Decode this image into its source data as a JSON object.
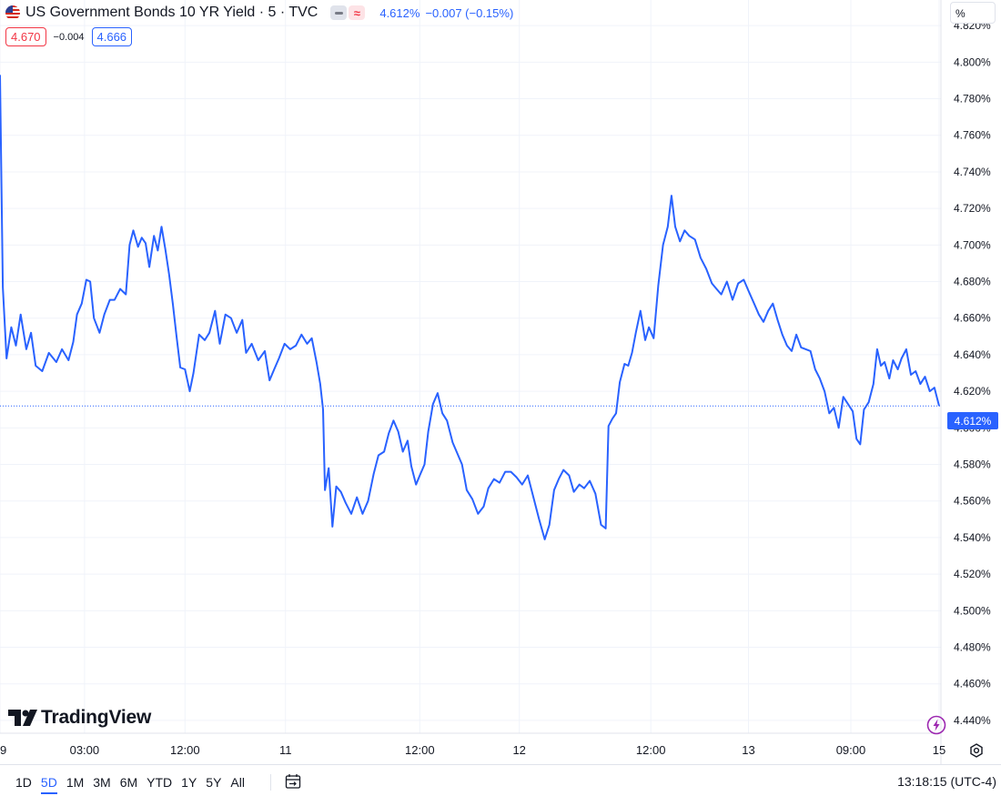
{
  "header": {
    "title": "US Government Bonds 10 YR Yield · 5 · TVC",
    "price": "4.612%",
    "change": "−0.007 (−0.15%)",
    "flag_icon": "us-flag-icon",
    "colors": {
      "accent": "#2962ff",
      "down": "#f23645"
    }
  },
  "quote": {
    "bid": "4.670",
    "spread": "−0.004",
    "ask": "4.666"
  },
  "unit_label": "%",
  "last_price_label": "4.612%",
  "logo": {
    "text": "TradingView",
    "icon": "tradingview-logo-icon"
  },
  "bottom_bar": {
    "ranges": [
      "1D",
      "5D",
      "1M",
      "3M",
      "6M",
      "YTD",
      "1Y",
      "5Y",
      "All"
    ],
    "active_range": "5D",
    "clock": "13:18:15 (UTC-4)"
  },
  "chart_data": {
    "type": "line",
    "title": "US Government Bonds 10 YR Yield · 5 · TVC",
    "ylim": [
      4.433,
      4.834
    ],
    "y_ticks": [
      "4.440%",
      "4.460%",
      "4.480%",
      "4.500%",
      "4.520%",
      "4.540%",
      "4.560%",
      "4.580%",
      "4.600%",
      "4.620%",
      "4.640%",
      "4.660%",
      "4.680%",
      "4.700%",
      "4.720%",
      "4.740%",
      "4.760%",
      "4.780%",
      "4.800%",
      "4.820%"
    ],
    "y_tick_values": [
      4.44,
      4.46,
      4.48,
      4.5,
      4.52,
      4.54,
      4.56,
      4.58,
      4.6,
      4.62,
      4.64,
      4.66,
      4.68,
      4.7,
      4.72,
      4.74,
      4.76,
      4.78,
      4.8,
      4.82
    ],
    "x_ticks": [
      "9",
      "03:00",
      "12:00",
      "11",
      "12:00",
      "12",
      "12:00",
      "13",
      "09:00",
      "15"
    ],
    "x_tick_positions": [
      0,
      0.09,
      0.197,
      0.304,
      0.447,
      0.553,
      0.693,
      0.797,
      0.906,
      1.0
    ],
    "last_value": 4.612,
    "series": [
      {
        "color": "#2962ff",
        "points": [
          [
            0.0,
            4.793
          ],
          [
            0.003,
            4.677
          ],
          [
            0.007,
            4.638
          ],
          [
            0.012,
            4.655
          ],
          [
            0.017,
            4.645
          ],
          [
            0.022,
            4.662
          ],
          [
            0.028,
            4.643
          ],
          [
            0.033,
            4.652
          ],
          [
            0.038,
            4.634
          ],
          [
            0.045,
            4.631
          ],
          [
            0.052,
            4.641
          ],
          [
            0.06,
            4.636
          ],
          [
            0.066,
            4.643
          ],
          [
            0.073,
            4.637
          ],
          [
            0.078,
            4.647
          ],
          [
            0.082,
            4.662
          ],
          [
            0.087,
            4.668
          ],
          [
            0.092,
            4.681
          ],
          [
            0.096,
            4.68
          ],
          [
            0.1,
            4.66
          ],
          [
            0.106,
            4.652
          ],
          [
            0.111,
            4.662
          ],
          [
            0.117,
            4.67
          ],
          [
            0.122,
            4.67
          ],
          [
            0.128,
            4.676
          ],
          [
            0.134,
            4.673
          ],
          [
            0.138,
            4.7
          ],
          [
            0.142,
            4.708
          ],
          [
            0.147,
            4.699
          ],
          [
            0.151,
            4.704
          ],
          [
            0.155,
            4.701
          ],
          [
            0.159,
            4.688
          ],
          [
            0.164,
            4.705
          ],
          [
            0.168,
            4.697
          ],
          [
            0.172,
            4.71
          ],
          [
            0.176,
            4.698
          ],
          [
            0.18,
            4.684
          ],
          [
            0.184,
            4.668
          ],
          [
            0.188,
            4.65
          ],
          [
            0.192,
            4.633
          ],
          [
            0.197,
            4.632
          ],
          [
            0.202,
            4.62
          ],
          [
            0.206,
            4.63
          ],
          [
            0.212,
            4.651
          ],
          [
            0.218,
            4.648
          ],
          [
            0.223,
            4.652
          ],
          [
            0.229,
            4.664
          ],
          [
            0.234,
            4.646
          ],
          [
            0.24,
            4.662
          ],
          [
            0.246,
            4.66
          ],
          [
            0.252,
            4.652
          ],
          [
            0.258,
            4.659
          ],
          [
            0.262,
            4.641
          ],
          [
            0.268,
            4.646
          ],
          [
            0.275,
            4.637
          ],
          [
            0.282,
            4.642
          ],
          [
            0.287,
            4.626
          ],
          [
            0.292,
            4.632
          ],
          [
            0.297,
            4.638
          ],
          [
            0.303,
            4.646
          ],
          [
            0.309,
            4.643
          ],
          [
            0.315,
            4.645
          ],
          [
            0.321,
            4.651
          ],
          [
            0.327,
            4.646
          ],
          [
            0.332,
            4.649
          ],
          [
            0.337,
            4.636
          ],
          [
            0.341,
            4.624
          ],
          [
            0.344,
            4.61
          ],
          [
            0.346,
            4.566
          ],
          [
            0.35,
            4.578
          ],
          [
            0.354,
            4.546
          ],
          [
            0.358,
            4.568
          ],
          [
            0.363,
            4.565
          ],
          [
            0.368,
            4.559
          ],
          [
            0.374,
            4.553
          ],
          [
            0.38,
            4.562
          ],
          [
            0.386,
            4.553
          ],
          [
            0.392,
            4.56
          ],
          [
            0.398,
            4.575
          ],
          [
            0.403,
            4.585
          ],
          [
            0.409,
            4.587
          ],
          [
            0.414,
            4.597
          ],
          [
            0.419,
            4.604
          ],
          [
            0.424,
            4.598
          ],
          [
            0.429,
            4.587
          ],
          [
            0.434,
            4.593
          ],
          [
            0.438,
            4.579
          ],
          [
            0.443,
            4.569
          ],
          [
            0.447,
            4.574
          ],
          [
            0.452,
            4.58
          ],
          [
            0.456,
            4.598
          ],
          [
            0.461,
            4.613
          ],
          [
            0.466,
            4.619
          ],
          [
            0.471,
            4.608
          ],
          [
            0.476,
            4.604
          ],
          [
            0.482,
            4.592
          ],
          [
            0.487,
            4.586
          ],
          [
            0.492,
            4.58
          ],
          [
            0.497,
            4.566
          ],
          [
            0.503,
            4.561
          ],
          [
            0.509,
            4.553
          ],
          [
            0.515,
            4.557
          ],
          [
            0.52,
            4.567
          ],
          [
            0.526,
            4.572
          ],
          [
            0.532,
            4.57
          ],
          [
            0.538,
            4.576
          ],
          [
            0.544,
            4.576
          ],
          [
            0.55,
            4.573
          ],
          [
            0.556,
            4.569
          ],
          [
            0.562,
            4.574
          ],
          [
            0.568,
            4.562
          ],
          [
            0.574,
            4.55
          ],
          [
            0.58,
            4.539
          ],
          [
            0.585,
            4.547
          ],
          [
            0.59,
            4.566
          ],
          [
            0.595,
            4.572
          ],
          [
            0.6,
            4.577
          ],
          [
            0.606,
            4.574
          ],
          [
            0.611,
            4.565
          ],
          [
            0.617,
            4.569
          ],
          [
            0.622,
            4.567
          ],
          [
            0.628,
            4.571
          ],
          [
            0.634,
            4.564
          ],
          [
            0.64,
            4.547
          ],
          [
            0.645,
            4.545
          ],
          [
            0.648,
            4.601
          ],
          [
            0.652,
            4.605
          ],
          [
            0.656,
            4.608
          ],
          [
            0.66,
            4.625
          ],
          [
            0.665,
            4.635
          ],
          [
            0.669,
            4.634
          ],
          [
            0.673,
            4.641
          ],
          [
            0.677,
            4.652
          ],
          [
            0.682,
            4.664
          ],
          [
            0.687,
            4.648
          ],
          [
            0.691,
            4.655
          ],
          [
            0.696,
            4.649
          ],
          [
            0.701,
            4.678
          ],
          [
            0.706,
            4.7
          ],
          [
            0.711,
            4.71
          ],
          [
            0.715,
            4.727
          ],
          [
            0.719,
            4.71
          ],
          [
            0.724,
            4.702
          ],
          [
            0.729,
            4.708
          ],
          [
            0.734,
            4.705
          ],
          [
            0.74,
            4.703
          ],
          [
            0.746,
            4.693
          ],
          [
            0.752,
            4.687
          ],
          [
            0.758,
            4.679
          ],
          [
            0.763,
            4.676
          ],
          [
            0.768,
            4.673
          ],
          [
            0.774,
            4.68
          ],
          [
            0.78,
            4.67
          ],
          [
            0.786,
            4.679
          ],
          [
            0.792,
            4.681
          ],
          [
            0.797,
            4.675
          ],
          [
            0.803,
            4.668
          ],
          [
            0.808,
            4.662
          ],
          [
            0.813,
            4.658
          ],
          [
            0.818,
            4.664
          ],
          [
            0.823,
            4.668
          ],
          [
            0.828,
            4.659
          ],
          [
            0.833,
            4.651
          ],
          [
            0.838,
            4.645
          ],
          [
            0.843,
            4.642
          ],
          [
            0.848,
            4.651
          ],
          [
            0.853,
            4.644
          ],
          [
            0.858,
            4.643
          ],
          [
            0.863,
            4.642
          ],
          [
            0.868,
            4.632
          ],
          [
            0.873,
            4.627
          ],
          [
            0.878,
            4.62
          ],
          [
            0.883,
            4.608
          ],
          [
            0.888,
            4.611
          ],
          [
            0.893,
            4.6
          ],
          [
            0.898,
            4.617
          ],
          [
            0.903,
            4.613
          ],
          [
            0.908,
            4.609
          ],
          [
            0.912,
            4.594
          ],
          [
            0.916,
            4.591
          ],
          [
            0.92,
            4.61
          ],
          [
            0.925,
            4.614
          ],
          [
            0.93,
            4.624
          ],
          [
            0.934,
            4.643
          ],
          [
            0.938,
            4.634
          ],
          [
            0.942,
            4.636
          ],
          [
            0.947,
            4.627
          ],
          [
            0.951,
            4.637
          ],
          [
            0.956,
            4.632
          ],
          [
            0.96,
            4.638
          ],
          [
            0.965,
            4.643
          ],
          [
            0.97,
            4.629
          ],
          [
            0.975,
            4.631
          ],
          [
            0.98,
            4.624
          ],
          [
            0.985,
            4.628
          ],
          [
            0.99,
            4.62
          ],
          [
            0.995,
            4.622
          ],
          [
            1.0,
            4.612
          ]
        ]
      }
    ],
    "grid": true
  }
}
